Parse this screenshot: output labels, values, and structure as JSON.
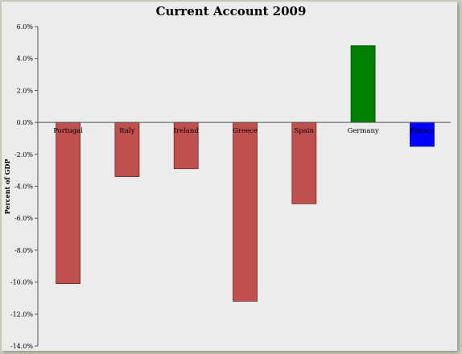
{
  "chart_data": {
    "type": "bar",
    "title": "Current Account 2009",
    "xlabel": "",
    "ylabel": "Percent of GDP",
    "categories": [
      "Portugal",
      "Italy",
      "Ireland",
      "Greece",
      "Spain",
      "Germany",
      "France"
    ],
    "values": [
      -10.1,
      -3.4,
      -2.9,
      -11.2,
      -5.1,
      4.8,
      -1.5
    ],
    "bar_colors": [
      "#c0504d",
      "#c0504d",
      "#c0504d",
      "#c0504d",
      "#c0504d",
      "#008000",
      "#0000ff"
    ],
    "y_ticks": [
      "6.0%",
      "4.0%",
      "2.0%",
      "0.0%",
      "-2.0%",
      "-4.0%",
      "-6.0%",
      "-8.0%",
      "-10.0%",
      "-12.0%",
      "-14.0%"
    ],
    "ylim": [
      -14,
      6
    ],
    "grid": false,
    "legend": "none"
  }
}
